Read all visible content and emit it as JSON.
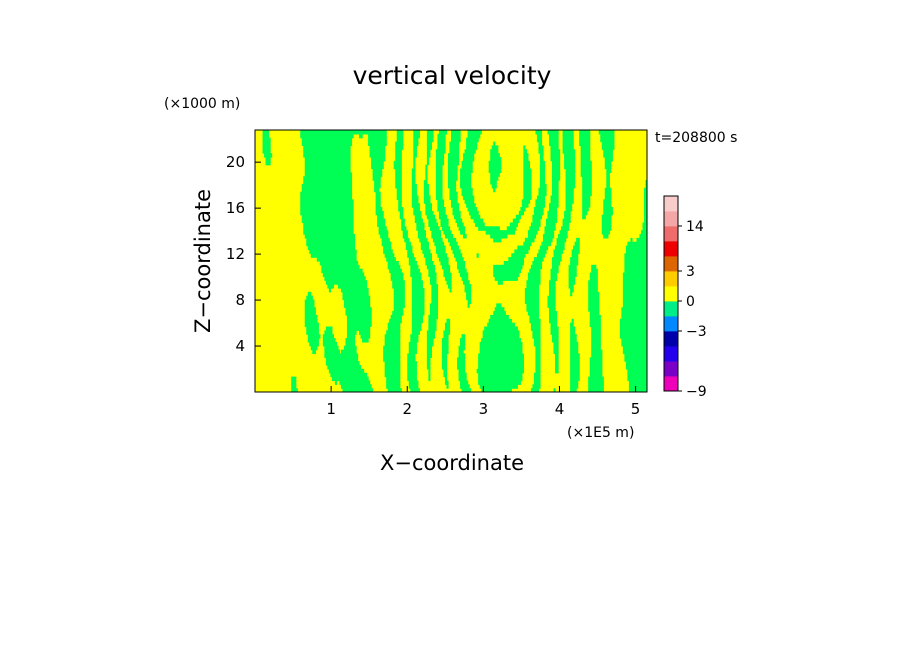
{
  "chart_data": {
    "type": "heatmap",
    "title": "vertical velocity",
    "xlabel": "X−coordinate",
    "ylabel": "Z−coordinate",
    "x_unit": "(×1E5 m)",
    "y_unit": "(×1000 m)",
    "time_label": "t=208800 s",
    "xlim": [
      0,
      5.15
    ],
    "ylim": [
      0,
      22.8
    ],
    "x_ticks": [
      {
        "value": 1,
        "label": "1"
      },
      {
        "value": 2,
        "label": "2"
      },
      {
        "value": 3,
        "label": "3"
      },
      {
        "value": 4,
        "label": "4"
      },
      {
        "value": 5,
        "label": "5"
      }
    ],
    "y_ticks": [
      {
        "value": 4,
        "label": "4"
      },
      {
        "value": 8,
        "label": "8"
      },
      {
        "value": 12,
        "label": "12"
      },
      {
        "value": 16,
        "label": "16"
      },
      {
        "value": 20,
        "label": "20"
      }
    ],
    "field_colors": {
      "positive": "#ffff00",
      "negative": "#00ff55"
    },
    "colorbar": {
      "levels": [
        {
          "lo": -9,
          "hi": -7.5,
          "color": "#ee00bb"
        },
        {
          "lo": -7.5,
          "hi": -6,
          "color": "#7a00c8"
        },
        {
          "lo": -6,
          "hi": -4.5,
          "color": "#2200ee"
        },
        {
          "lo": -4.5,
          "hi": -3,
          "color": "#0000aa"
        },
        {
          "lo": -3,
          "hi": -1.5,
          "color": "#0088ff"
        },
        {
          "lo": -1.5,
          "hi": 0,
          "color": "#00ee88"
        },
        {
          "lo": 0,
          "hi": 1.5,
          "color": "#ffff00"
        },
        {
          "lo": 1.5,
          "hi": 3,
          "color": "#ffcc00"
        },
        {
          "lo": 3,
          "hi": 4.5,
          "color": "#dd6600"
        },
        {
          "lo": 4.5,
          "hi": 9,
          "color": "#ee0000"
        },
        {
          "lo": 9,
          "hi": 14,
          "color": "#f06c6c"
        },
        {
          "lo": 14,
          "hi": 18,
          "color": "#f5a6a6"
        },
        {
          "lo": 18,
          "hi": 22,
          "color": "#f9cccc"
        }
      ],
      "tick_labels": [
        {
          "value": 14,
          "label": "14"
        },
        {
          "value": 3,
          "label": "3"
        },
        {
          "value": 0,
          "label": "0"
        },
        {
          "value": -3,
          "label": "−3"
        },
        {
          "value": -9,
          "label": "−9"
        }
      ]
    }
  }
}
